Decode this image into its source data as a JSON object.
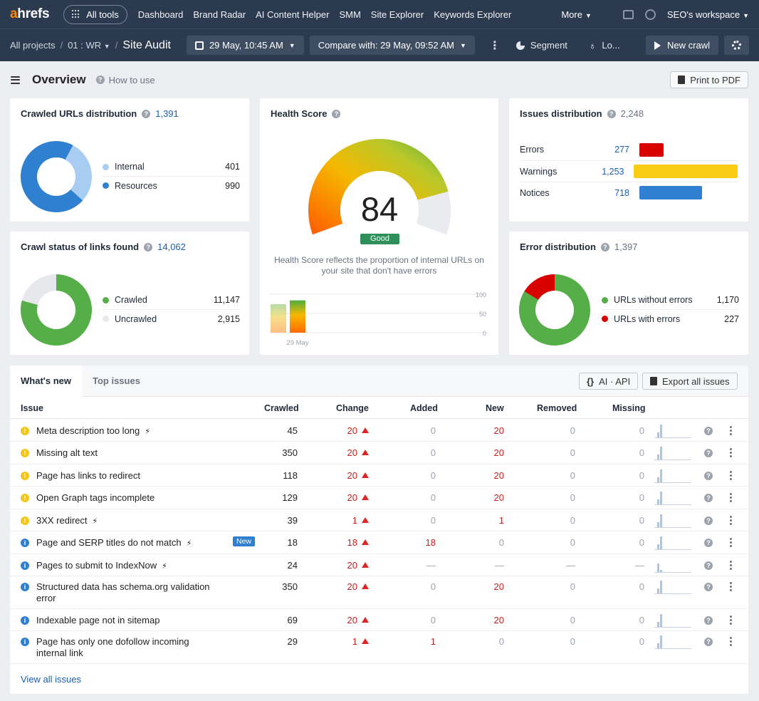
{
  "nav": {
    "logo": "ahrefs",
    "all_tools": "All tools",
    "links": [
      "Dashboard",
      "Brand Radar",
      "AI Content Helper",
      "SMM",
      "Site Explorer",
      "Keywords Explorer"
    ],
    "more": "More",
    "workspace": "SEO's workspace"
  },
  "subbar": {
    "crumb_projects": "All projects",
    "crumb_project": "01 : WR",
    "title": "Site Audit",
    "date_label": "29 May, 10:45 AM",
    "compare_label": "Compare with: 29 May, 09:52 AM",
    "segment_label": "Segment",
    "lo_label": "Lo...",
    "new_crawl_label": "New crawl"
  },
  "overview": {
    "title": "Overview",
    "how_to_use": "How to use",
    "print_pdf": "Print to PDF"
  },
  "crawled_urls": {
    "title": "Crawled URLs distribution",
    "count": "1,391",
    "items": [
      {
        "label": "Internal",
        "value": "401",
        "raw": 401,
        "color": "#a9cdf2"
      },
      {
        "label": "Resources",
        "value": "990",
        "raw": 990,
        "color": "#2f80d1"
      }
    ]
  },
  "crawl_status": {
    "title": "Crawl status of links found",
    "count": "14,062",
    "items": [
      {
        "label": "Crawled",
        "value": "11,147",
        "raw": 11147,
        "color": "#55ae48"
      },
      {
        "label": "Uncrawled",
        "value": "2,915",
        "raw": 2915,
        "color": "#e6e8eb"
      }
    ]
  },
  "health": {
    "title": "Health Score",
    "score": "84",
    "score_value": 84,
    "status": "Good",
    "description": "Health Score reflects the proportion of internal URLs on your site that don't have errors",
    "mini_axis": [
      "100",
      "50",
      "0"
    ],
    "mini_date": "29 May",
    "mini_bars": [
      74,
      84
    ]
  },
  "issues_dist": {
    "title": "Issues distribution",
    "count": "2,248",
    "rows": [
      {
        "label": "Errors",
        "value": "277",
        "raw": 277,
        "color": "#d90000"
      },
      {
        "label": "Warnings",
        "value": "1,253",
        "raw": 1253,
        "color": "#facc15"
      },
      {
        "label": "Notices",
        "value": "718",
        "raw": 718,
        "color": "#2f80d1"
      }
    ]
  },
  "error_dist": {
    "title": "Error distribution",
    "count": "1,397",
    "items": [
      {
        "label": "URLs without errors",
        "value": "1,170",
        "raw": 1170,
        "color": "#55ae48"
      },
      {
        "label": "URLs with errors",
        "value": "227",
        "raw": 227,
        "color": "#d90000"
      }
    ]
  },
  "table": {
    "tabs": [
      "What's new",
      "Top issues"
    ],
    "ai_api": "AI · API",
    "export": "Export all issues",
    "columns": [
      "Issue",
      "Crawled",
      "Change",
      "Added",
      "New",
      "Removed",
      "Missing"
    ],
    "rows": [
      {
        "type": "warning",
        "issue": "Meta description too long",
        "bolt": true,
        "new_tag": false,
        "crawled": "45",
        "change": "20",
        "added": "0",
        "new": "20",
        "removed": "0",
        "missing": "0"
      },
      {
        "type": "warning",
        "issue": "Missing alt text",
        "bolt": false,
        "new_tag": false,
        "crawled": "350",
        "change": "20",
        "added": "0",
        "new": "20",
        "removed": "0",
        "missing": "0"
      },
      {
        "type": "warning",
        "issue": "Page has links to redirect",
        "bolt": false,
        "new_tag": false,
        "crawled": "118",
        "change": "20",
        "added": "0",
        "new": "20",
        "removed": "0",
        "missing": "0"
      },
      {
        "type": "warning",
        "issue": "Open Graph tags incomplete",
        "bolt": false,
        "new_tag": false,
        "crawled": "129",
        "change": "20",
        "added": "0",
        "new": "20",
        "removed": "0",
        "missing": "0"
      },
      {
        "type": "warning",
        "issue": "3XX redirect",
        "bolt": true,
        "new_tag": false,
        "crawled": "39",
        "change": "1",
        "added": "0",
        "new": "1",
        "removed": "0",
        "missing": "0"
      },
      {
        "type": "notice",
        "issue": "Page and SERP titles do not match",
        "bolt": true,
        "new_tag": true,
        "crawled": "18",
        "change": "18",
        "added": "18",
        "new": "0",
        "removed": "0",
        "missing": "0"
      },
      {
        "type": "notice",
        "issue": "Pages to submit to IndexNow",
        "bolt": true,
        "new_tag": false,
        "crawled": "24",
        "change": "20",
        "added": "—",
        "new": "—",
        "removed": "—",
        "missing": "—"
      },
      {
        "type": "notice",
        "issue": "Structured data has schema.org validation error",
        "bolt": false,
        "new_tag": false,
        "crawled": "350",
        "change": "20",
        "added": "0",
        "new": "20",
        "removed": "0",
        "missing": "0"
      },
      {
        "type": "notice",
        "issue": "Indexable page not in sitemap",
        "bolt": false,
        "new_tag": false,
        "crawled": "69",
        "change": "20",
        "added": "0",
        "new": "20",
        "removed": "0",
        "missing": "0"
      },
      {
        "type": "notice",
        "issue": "Page has only one dofollow incoming internal link",
        "bolt": false,
        "new_tag": false,
        "crawled": "29",
        "change": "1",
        "added": "1",
        "new": "0",
        "removed": "0",
        "missing": "0"
      }
    ],
    "new_badge": "New",
    "view_all": "View all issues"
  }
}
